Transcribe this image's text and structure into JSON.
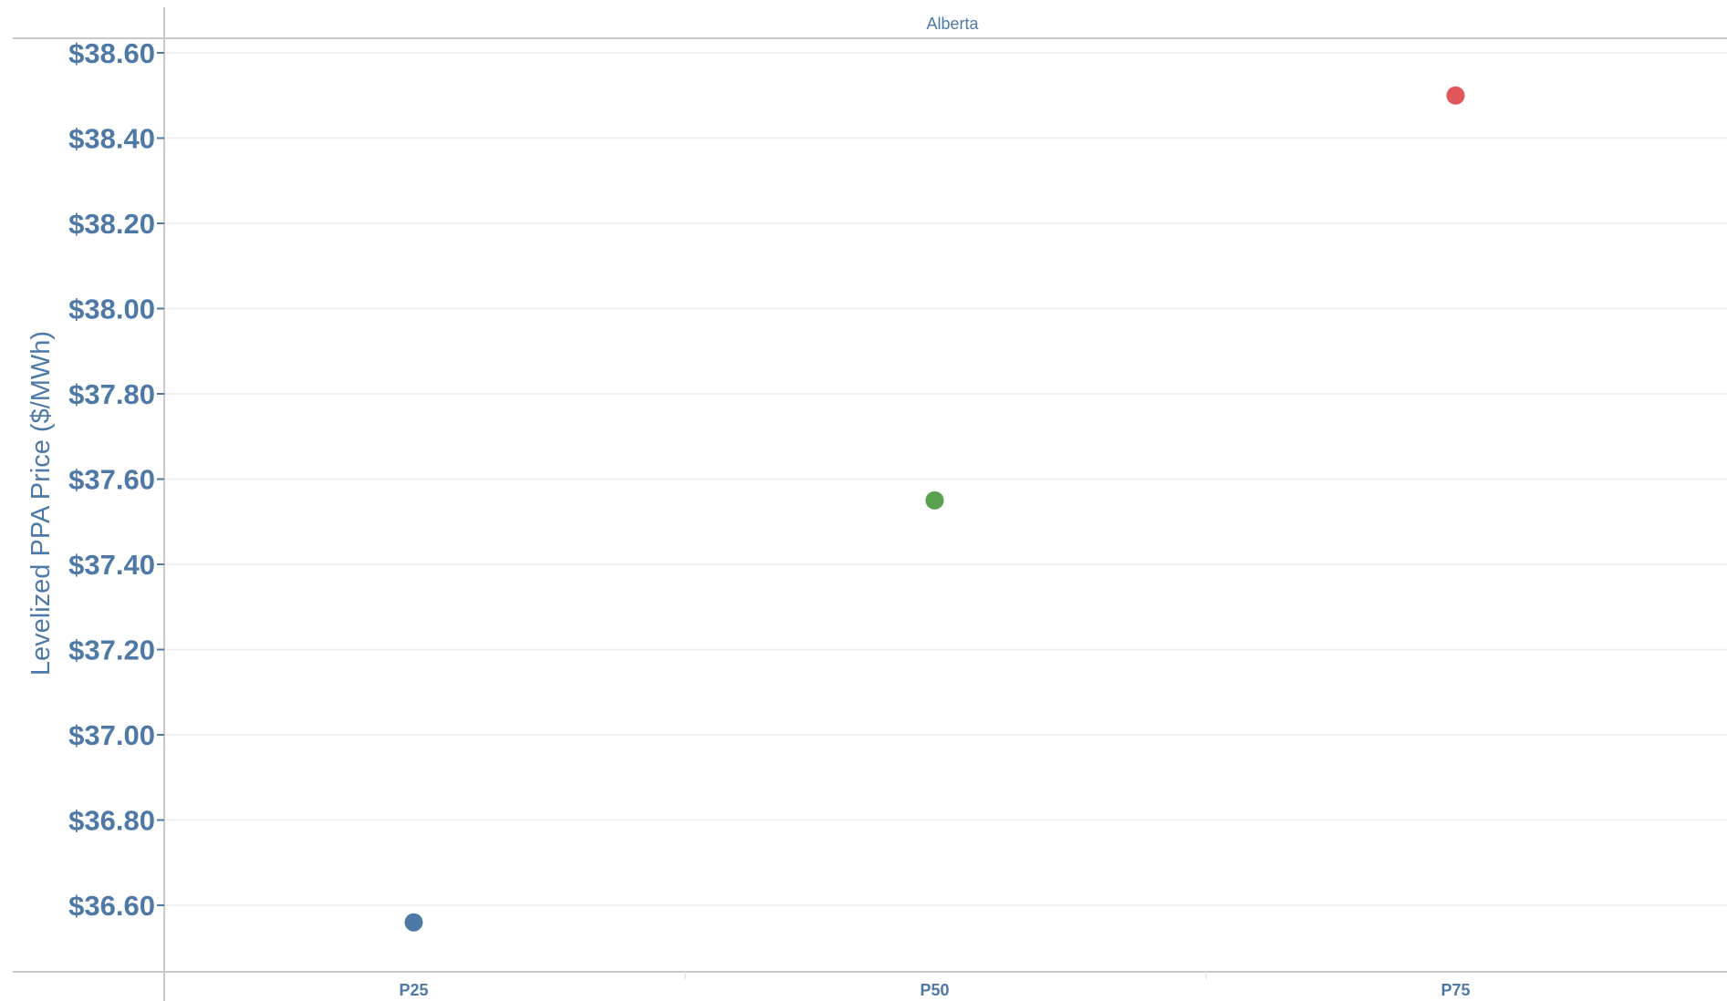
{
  "chart_data": {
    "type": "scatter",
    "panel_header": "Alberta",
    "ylabel": "Levelized PPA Price ($/MWh)",
    "xlabel": "",
    "categories": [
      "P25",
      "P50",
      "P75"
    ],
    "values": [
      36.56,
      37.55,
      38.5
    ],
    "point_colors": [
      "#4e79a7",
      "#59a14f",
      "#e15759"
    ],
    "ylim": [
      36.45,
      38.63
    ],
    "yticks": [
      36.6,
      36.8,
      37.0,
      37.2,
      37.4,
      37.6,
      37.8,
      38.0,
      38.2,
      38.4,
      38.6
    ],
    "ytick_labels": [
      "$36.60",
      "$36.80",
      "$37.00",
      "$37.20",
      "$37.40",
      "$37.60",
      "$37.80",
      "$38.00",
      "$38.20",
      "$38.40",
      "$38.60"
    ],
    "grid": true,
    "legend": "none",
    "colors": {
      "text": "#4e79a7",
      "grid": "#ececec",
      "axis": "#c8c8c8"
    }
  }
}
